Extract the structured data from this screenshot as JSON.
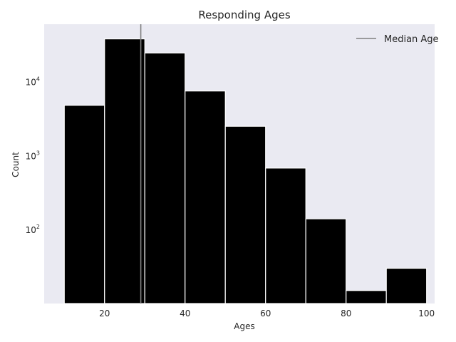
{
  "chart_data": {
    "type": "bar",
    "subtype": "histogram",
    "title": "Responding Ages",
    "xlabel": "Ages",
    "ylabel": "Count",
    "yscale": "log",
    "xlim": [
      5,
      102
    ],
    "ylim": [
      10,
      60000
    ],
    "xticks": [
      20,
      40,
      60,
      80,
      100
    ],
    "yticks": [
      100,
      1000,
      10000
    ],
    "ytick_labels": [
      {
        "base": "10",
        "exp": "2"
      },
      {
        "base": "10",
        "exp": "3"
      },
      {
        "base": "10",
        "exp": "4"
      }
    ],
    "grid": false,
    "legend_position": "top-right",
    "bins": [
      {
        "start": 10,
        "end": 20,
        "count": 4800
      },
      {
        "start": 20,
        "end": 30,
        "count": 38000
      },
      {
        "start": 30,
        "end": 40,
        "count": 24500
      },
      {
        "start": 40,
        "end": 50,
        "count": 7500
      },
      {
        "start": 50,
        "end": 60,
        "count": 2500
      },
      {
        "start": 60,
        "end": 70,
        "count": 680
      },
      {
        "start": 70,
        "end": 80,
        "count": 140
      },
      {
        "start": 80,
        "end": 90,
        "count": 15
      },
      {
        "start": 90,
        "end": 100,
        "count": 30
      }
    ],
    "median_line": {
      "name": "Median Age",
      "x": 29
    },
    "colors": {
      "bar": "#000000",
      "bar_edge": "#ffffff",
      "median": "#808080",
      "plot_bg": "#eaeaf2"
    }
  }
}
